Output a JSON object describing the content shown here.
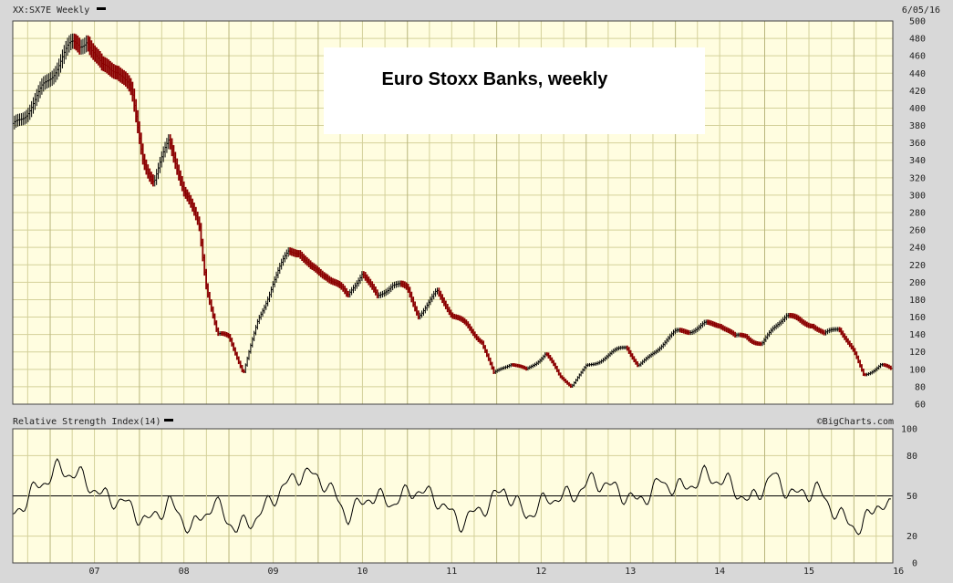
{
  "header": {
    "symbol_label": "XX:SX7E Weekly",
    "date_label": "6/05/16"
  },
  "rsi_panel": {
    "label": "Relative Strength Index(14)",
    "credit": "©BigCharts.com"
  },
  "annotation": {
    "title": "Euro Stoxx Banks, weekly"
  },
  "colors": {
    "plot_background": "#fffde0",
    "grid": "#d4d19a",
    "up_bar": "#000000",
    "down_bar": "#8b0000",
    "rsi_line": "#000000",
    "page_background": "#d8d8d8"
  },
  "chart_data": [
    {
      "type": "line",
      "subtype": "ohlc-weekly",
      "series": [
        {
          "name": "XX:SX7E Weekly",
          "x": [
            "2006-08-01",
            "2006-10-01",
            "2006-12-01",
            "2007-03-01",
            "2007-05-01",
            "2007-06-01",
            "2007-08-01",
            "2007-10-01",
            "2007-12-01",
            "2008-01-15",
            "2008-03-01",
            "2008-05-01",
            "2008-07-01",
            "2008-09-01",
            "2008-10-01",
            "2008-11-15",
            "2009-01-01",
            "2009-03-01",
            "2009-05-01",
            "2009-07-01",
            "2009-09-01",
            "2009-10-15",
            "2009-12-01",
            "2010-02-01",
            "2010-05-01",
            "2010-07-01",
            "2010-09-01",
            "2010-11-01",
            "2011-01-01",
            "2011-02-15",
            "2011-05-01",
            "2011-07-01",
            "2011-09-01",
            "2011-11-01",
            "2011-12-20",
            "2012-03-01",
            "2012-05-01",
            "2012-07-20",
            "2012-09-15",
            "2012-11-01",
            "2013-01-01",
            "2013-04-01",
            "2013-06-15",
            "2013-08-01",
            "2013-10-01",
            "2014-01-01",
            "2014-03-01",
            "2014-05-01",
            "2014-07-01",
            "2014-09-01",
            "2014-10-15",
            "2014-12-20",
            "2015-02-01",
            "2015-04-01",
            "2015-06-01",
            "2015-07-15",
            "2015-09-01",
            "2015-11-01",
            "2016-01-01",
            "2016-02-10",
            "2016-03-15",
            "2016-04-20",
            "2016-06-01"
          ],
          "values": [
            370,
            400,
            430,
            455,
            470,
            490,
            450,
            440,
            410,
            350,
            320,
            360,
            300,
            270,
            200,
            140,
            135,
            95,
            160,
            200,
            230,
            235,
            220,
            210,
            180,
            215,
            185,
            195,
            190,
            165,
            190,
            160,
            150,
            135,
            95,
            105,
            100,
            120,
            90,
            80,
            105,
            115,
            125,
            105,
            120,
            140,
            145,
            155,
            150,
            135,
            140,
            130,
            145,
            160,
            155,
            155,
            140,
            145,
            120,
            95,
            100,
            105,
            98
          ]
        }
      ],
      "ylim": [
        60,
        500
      ],
      "yticks": [
        60,
        80,
        100,
        120,
        140,
        160,
        180,
        200,
        220,
        240,
        260,
        280,
        300,
        320,
        340,
        360,
        380,
        400,
        420,
        440,
        460,
        480,
        500
      ],
      "grid": true
    },
    {
      "type": "line",
      "series": [
        {
          "name": "Relative Strength Index(14)",
          "x": [
            "2006-08-01",
            "2006-11-01",
            "2007-02-01",
            "2007-05-01",
            "2007-08-01",
            "2007-11-01",
            "2008-02-01",
            "2008-05-01",
            "2008-08-01",
            "2008-11-01",
            "2009-02-01",
            "2009-05-01",
            "2009-08-01",
            "2009-11-01",
            "2010-02-01",
            "2010-05-01",
            "2010-08-01",
            "2010-11-01",
            "2011-02-01",
            "2011-05-01",
            "2011-08-01",
            "2011-11-01",
            "2012-02-01",
            "2012-05-01",
            "2012-08-01",
            "2012-11-01",
            "2013-02-01",
            "2013-05-01",
            "2013-08-01",
            "2013-11-01",
            "2014-02-01",
            "2014-05-01",
            "2014-08-01",
            "2014-11-01",
            "2015-02-01",
            "2015-05-01",
            "2015-08-01",
            "2015-11-01",
            "2016-02-01",
            "2016-04-01",
            "2016-06-01"
          ],
          "values": [
            35,
            55,
            70,
            65,
            50,
            45,
            30,
            45,
            25,
            45,
            25,
            35,
            55,
            68,
            60,
            35,
            50,
            45,
            55,
            48,
            30,
            40,
            55,
            35,
            48,
            50,
            62,
            55,
            45,
            60,
            55,
            65,
            60,
            45,
            65,
            50,
            55,
            35,
            25,
            45,
            40
          ]
        }
      ],
      "ylim": [
        0,
        100
      ],
      "yticks": [
        0,
        20,
        50,
        80,
        100
      ],
      "reference_line": 50,
      "grid": true
    }
  ],
  "x_axis": {
    "year_labels": [
      "07",
      "08",
      "09",
      "10",
      "11",
      "12",
      "13",
      "14",
      "15",
      "16"
    ]
  }
}
